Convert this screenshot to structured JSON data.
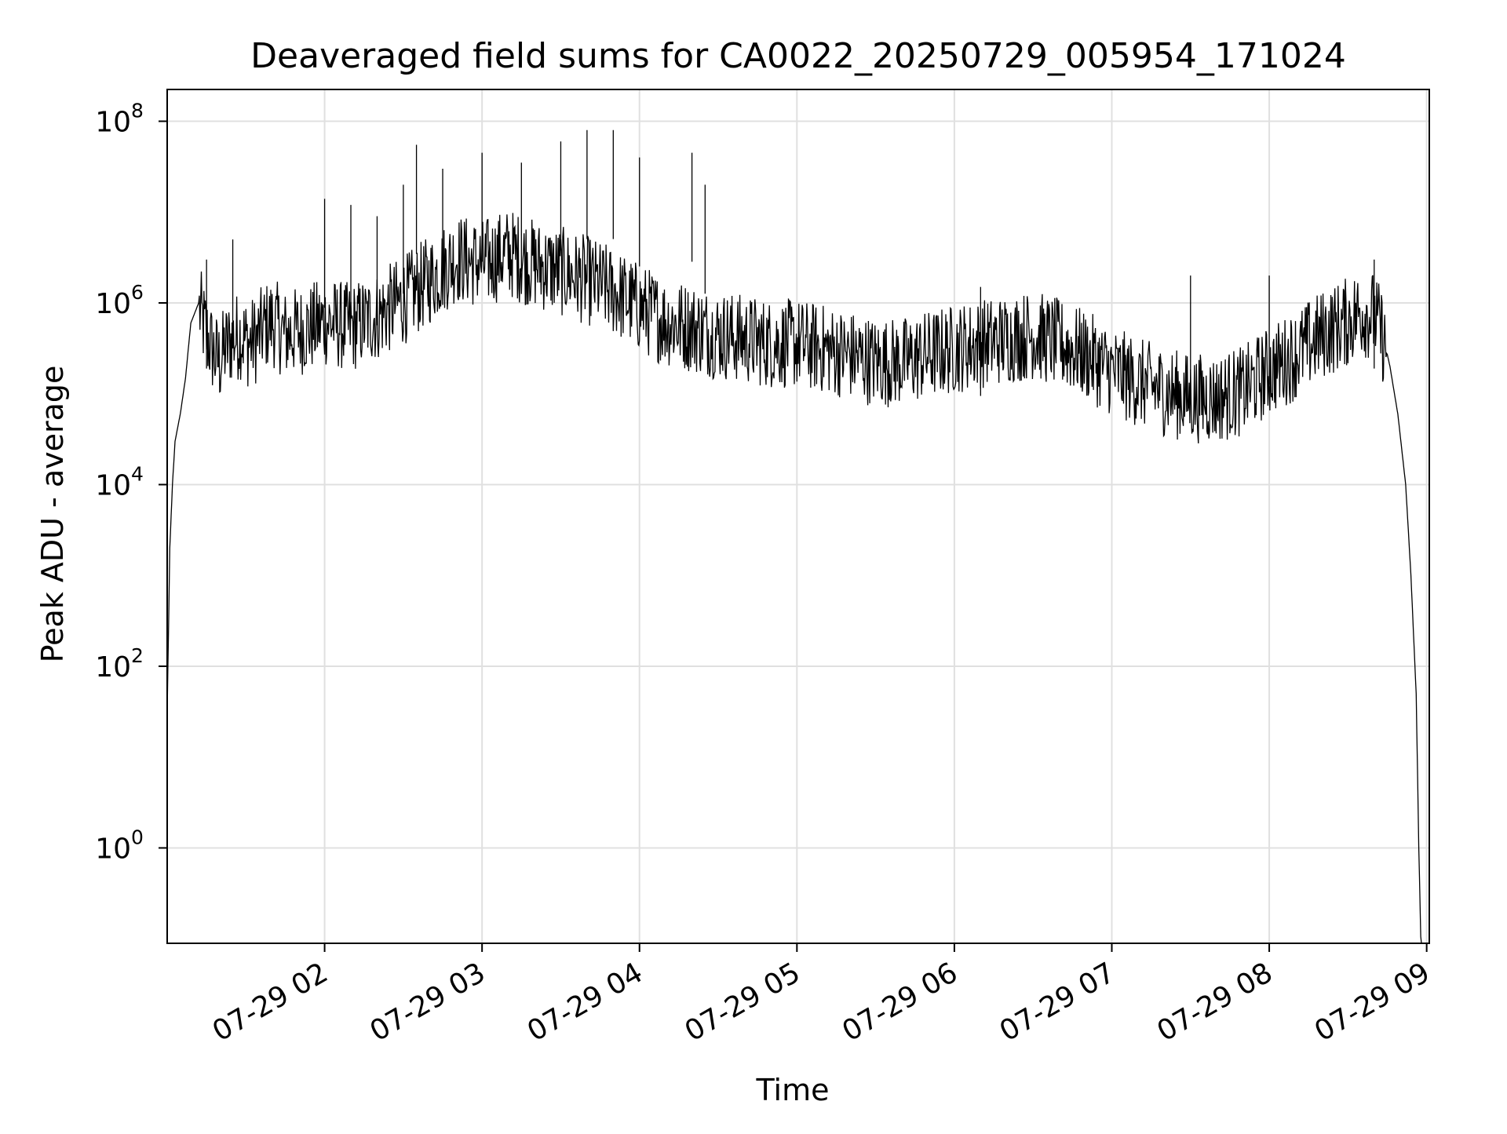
{
  "chart_data": {
    "type": "line",
    "title": "Deaveraged field sums for CA0022_20250729_005954_171024",
    "xlabel": "Time",
    "ylabel": "Peak ADU - average",
    "yscale": "log",
    "ylim_log10": [
      -1.05,
      8.35
    ],
    "xlim": [
      "07-29 01:00",
      "07-29 09:01"
    ],
    "grid": true,
    "colors": {
      "line": "#000000",
      "grid": "#e0e0e0",
      "axes": "#000000",
      "background": "#ffffff"
    },
    "x_ticks": [
      {
        "value": "07-29 02:00",
        "label": "07-29 02"
      },
      {
        "value": "07-29 03:00",
        "label": "07-29 03"
      },
      {
        "value": "07-29 04:00",
        "label": "07-29 04"
      },
      {
        "value": "07-29 05:00",
        "label": "07-29 05"
      },
      {
        "value": "07-29 06:00",
        "label": "07-29 06"
      },
      {
        "value": "07-29 07:00",
        "label": "07-29 07"
      },
      {
        "value": "07-29 08:00",
        "label": "07-29 08"
      },
      {
        "value": "07-29 09:00",
        "label": "07-29 09"
      }
    ],
    "y_ticks": [
      {
        "value": 1,
        "base": "10",
        "exp": "0"
      },
      {
        "value": 100,
        "base": "10",
        "exp": "2"
      },
      {
        "value": 10000,
        "base": "10",
        "exp": "4"
      },
      {
        "value": 1000000,
        "base": "10",
        "exp": "6"
      },
      {
        "value": 100000000,
        "base": "10",
        "exp": "8"
      }
    ],
    "series": [
      {
        "x": [
          "07-29 01:00",
          "07-29 01:01",
          "07-29 01:02",
          "07-29 01:03",
          "07-29 01:05",
          "07-29 01:07",
          "07-29 01:09",
          "07-29 01:12",
          "07-29 01:15",
          "07-29 01:18",
          "07-29 01:20",
          "07-29 01:22",
          "07-29 01:25",
          "07-29 01:28",
          "07-29 01:31",
          "07-29 01:34",
          "07-29 01:37",
          "07-29 01:40",
          "07-29 01:45",
          "07-29 01:50",
          "07-29 01:55",
          "07-29 02:00",
          "07-29 02:10",
          "07-29 02:20",
          "07-29 02:30",
          "07-29 02:40",
          "07-29 02:50",
          "07-29 03:00",
          "07-29 03:10",
          "07-29 03:20",
          "07-29 03:30",
          "07-29 03:40",
          "07-29 03:50",
          "07-29 04:00",
          "07-29 04:10",
          "07-29 04:20",
          "07-29 04:30",
          "07-29 04:40",
          "07-29 04:50",
          "07-29 05:00",
          "07-29 05:10",
          "07-29 05:20",
          "07-29 05:30",
          "07-29 05:40",
          "07-29 05:50",
          "07-29 06:00",
          "07-29 06:10",
          "07-29 06:20",
          "07-29 06:30",
          "07-29 06:40",
          "07-29 06:50",
          "07-29 07:00",
          "07-29 07:10",
          "07-29 07:20",
          "07-29 07:30",
          "07-29 07:40",
          "07-29 07:50",
          "07-29 08:00",
          "07-29 08:10",
          "07-29 08:20",
          "07-29 08:30",
          "07-29 08:35",
          "07-29 08:40",
          "07-29 08:43",
          "07-29 08:46",
          "07-29 08:49",
          "07-29 08:52",
          "07-29 08:54",
          "07-29 08:56",
          "07-29 08:57",
          "07-29 08:58"
        ],
        "y": [
          30,
          2000,
          10000,
          30000,
          60000,
          150000,
          600000,
          1000000,
          500000,
          300000,
          250000,
          350000,
          450000,
          500000,
          400000,
          450000,
          600000,
          700000,
          500000,
          550000,
          600000,
          700000,
          600000,
          800000,
          1200000,
          2000000,
          3500000,
          3000000,
          4000000,
          3000000,
          2500000,
          2000000,
          1500000,
          1000000,
          700000,
          600000,
          500000,
          450000,
          400000,
          400000,
          350000,
          300000,
          250000,
          250000,
          300000,
          350000,
          400000,
          450000,
          500000,
          400000,
          300000,
          200000,
          150000,
          120000,
          100000,
          100000,
          120000,
          200000,
          300000,
          500000,
          700000,
          900000,
          800000,
          500000,
          200000,
          60000,
          10000,
          1000,
          50,
          1,
          0.05
        ],
        "spikes": [
          {
            "x": "07-29 01:15",
            "y": 3000000
          },
          {
            "x": "07-29 01:25",
            "y": 5000000
          },
          {
            "x": "07-29 02:00",
            "y": 14000000
          },
          {
            "x": "07-29 02:10",
            "y": 12000000
          },
          {
            "x": "07-29 02:20",
            "y": 9000000
          },
          {
            "x": "07-29 02:30",
            "y": 20000000
          },
          {
            "x": "07-29 02:35",
            "y": 55000000
          },
          {
            "x": "07-29 02:45",
            "y": 30000000
          },
          {
            "x": "07-29 03:00",
            "y": 45000000
          },
          {
            "x": "07-29 03:15",
            "y": 35000000
          },
          {
            "x": "07-29 03:30",
            "y": 60000000
          },
          {
            "x": "07-29 03:40",
            "y": 80000000
          },
          {
            "x": "07-29 03:50",
            "y": 80000000
          },
          {
            "x": "07-29 04:00",
            "y": 40000000
          },
          {
            "x": "07-29 04:20",
            "y": 45000000
          },
          {
            "x": "07-29 04:25",
            "y": 20000000
          },
          {
            "x": "07-29 06:10",
            "y": 1500000
          },
          {
            "x": "07-29 07:30",
            "y": 2000000
          },
          {
            "x": "07-29 08:00",
            "y": 2000000
          },
          {
            "x": "07-29 08:40",
            "y": 3000000
          }
        ]
      }
    ]
  }
}
